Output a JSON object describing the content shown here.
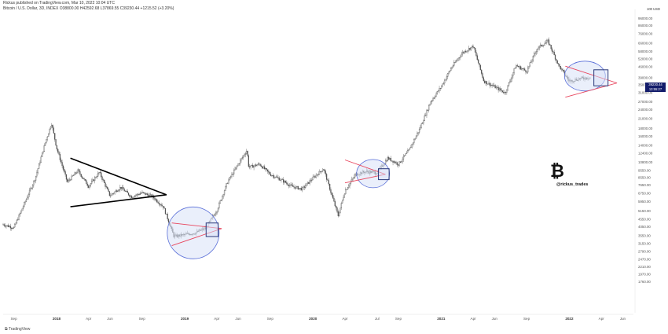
{
  "header": {
    "publisher": "Rickus published on TradingView.com, Mar 10, 2022 10:04 UTC",
    "symbol_line": "Bitcoin / U.S. Dollar, 3D, INDEX  O38800.00  H42592.68  L37869.55  C39230.44  +1215.52 (+3.20%)"
  },
  "price_tag": {
    "price": "39230.44",
    "countdown": "13:55:27"
  },
  "scale_tag": "100 USD",
  "watermark": {
    "symbol": "₿",
    "handle": "@rickus_trades"
  },
  "footer": {
    "logo_text": "TradingView"
  },
  "colors": {
    "candles": "#505050",
    "trendline": "#e8455d",
    "ellipse_fill": "#d9e2f7",
    "ellipse_stroke": "#5a6fd8",
    "box_stroke": "#2c3a7a",
    "triangle": "#000000",
    "price_tag_bg": "#131c6b"
  },
  "chart_data": {
    "type": "candlestick",
    "title": "Bitcoin / U.S. Dollar, 3D, INDEX",
    "y_scale": "log",
    "ylim": [
      1100,
      110000
    ],
    "y_ticks": [
      "96000.00",
      "86000.00",
      "76000.00",
      "66000.00",
      "58000.00",
      "52000.00",
      "46000.00",
      "39000.00",
      "35000.00",
      "31000.00",
      "27000.00",
      "24000.00",
      "21000.00",
      "18000.00",
      "16000.00",
      "14000.00",
      "12400.00",
      "10800.00",
      "9550.00",
      "8550.00",
      "7650.00",
      "6750.00",
      "5950.00",
      "5150.00",
      "4550.00",
      "4050.00",
      "3550.00",
      "3150.00",
      "2790.00",
      "2470.00",
      "2210.00",
      "1970.00",
      "1760.00"
    ],
    "x_ticks": [
      "Sep",
      "2018",
      "Apr",
      "Jun",
      "Sep",
      "2019",
      "Apr",
      "Jun",
      "Sep",
      "2020",
      "Apr",
      "Jul",
      "Sep",
      "2021",
      "Apr",
      "Jun",
      "Sep",
      "2022",
      "Apr",
      "Jun"
    ],
    "bold_ticks": [
      "2018",
      "2019",
      "2020",
      "2021",
      "2022"
    ],
    "x_start": "2017-08",
    "x_end": "2022-07",
    "series": [
      {
        "values": [
          [
            "2017-08",
            4200
          ],
          [
            "2017-09",
            4000
          ],
          [
            "2017-10",
            5800
          ],
          [
            "2017-11",
            8500
          ],
          [
            "2017-12",
            15000
          ],
          [
            "2017-12-17",
            19600
          ],
          [
            "2018-01",
            13500
          ],
          [
            "2018-02",
            8000
          ],
          [
            "2018-03",
            9500
          ],
          [
            "2018-04",
            7500
          ],
          [
            "2018-05",
            9300
          ],
          [
            "2018-06",
            6500
          ],
          [
            "2018-07",
            7400
          ],
          [
            "2018-08",
            6400
          ],
          [
            "2018-09",
            6800
          ],
          [
            "2018-10",
            6400
          ],
          [
            "2018-11",
            5500
          ],
          [
            "2018-12",
            3500
          ],
          [
            "2019-01",
            3600
          ],
          [
            "2019-02",
            3700
          ],
          [
            "2019-03",
            4000
          ],
          [
            "2019-04",
            5200
          ],
          [
            "2019-05",
            8000
          ],
          [
            "2019-06",
            10500
          ],
          [
            "2019-06-26",
            13000
          ],
          [
            "2019-07",
            10000
          ],
          [
            "2019-08",
            10500
          ],
          [
            "2019-09",
            9000
          ],
          [
            "2019-10",
            8300
          ],
          [
            "2019-11",
            7500
          ],
          [
            "2019-12",
            7200
          ],
          [
            "2020-01",
            8500
          ],
          [
            "2020-02",
            9800
          ],
          [
            "2020-03-12",
            4800
          ],
          [
            "2020-04",
            7000
          ],
          [
            "2020-05",
            9000
          ],
          [
            "2020-06",
            9400
          ],
          [
            "2020-07",
            9200
          ],
          [
            "2020-08",
            11500
          ],
          [
            "2020-09",
            10500
          ],
          [
            "2020-10",
            13000
          ],
          [
            "2020-11",
            18000
          ],
          [
            "2020-12",
            27000
          ],
          [
            "2021-01",
            34000
          ],
          [
            "2021-02",
            46000
          ],
          [
            "2021-03",
            57000
          ],
          [
            "2021-04",
            63000
          ],
          [
            "2021-05",
            37000
          ],
          [
            "2021-06",
            34000
          ],
          [
            "2021-07",
            31000
          ],
          [
            "2021-08",
            47000
          ],
          [
            "2021-09",
            43000
          ],
          [
            "2021-10",
            61000
          ],
          [
            "2021-11",
            68000
          ],
          [
            "2021-12",
            47000
          ],
          [
            "2022-01",
            37000
          ],
          [
            "2022-02",
            38500
          ],
          [
            "2022-03",
            39230
          ]
        ]
      }
    ]
  }
}
